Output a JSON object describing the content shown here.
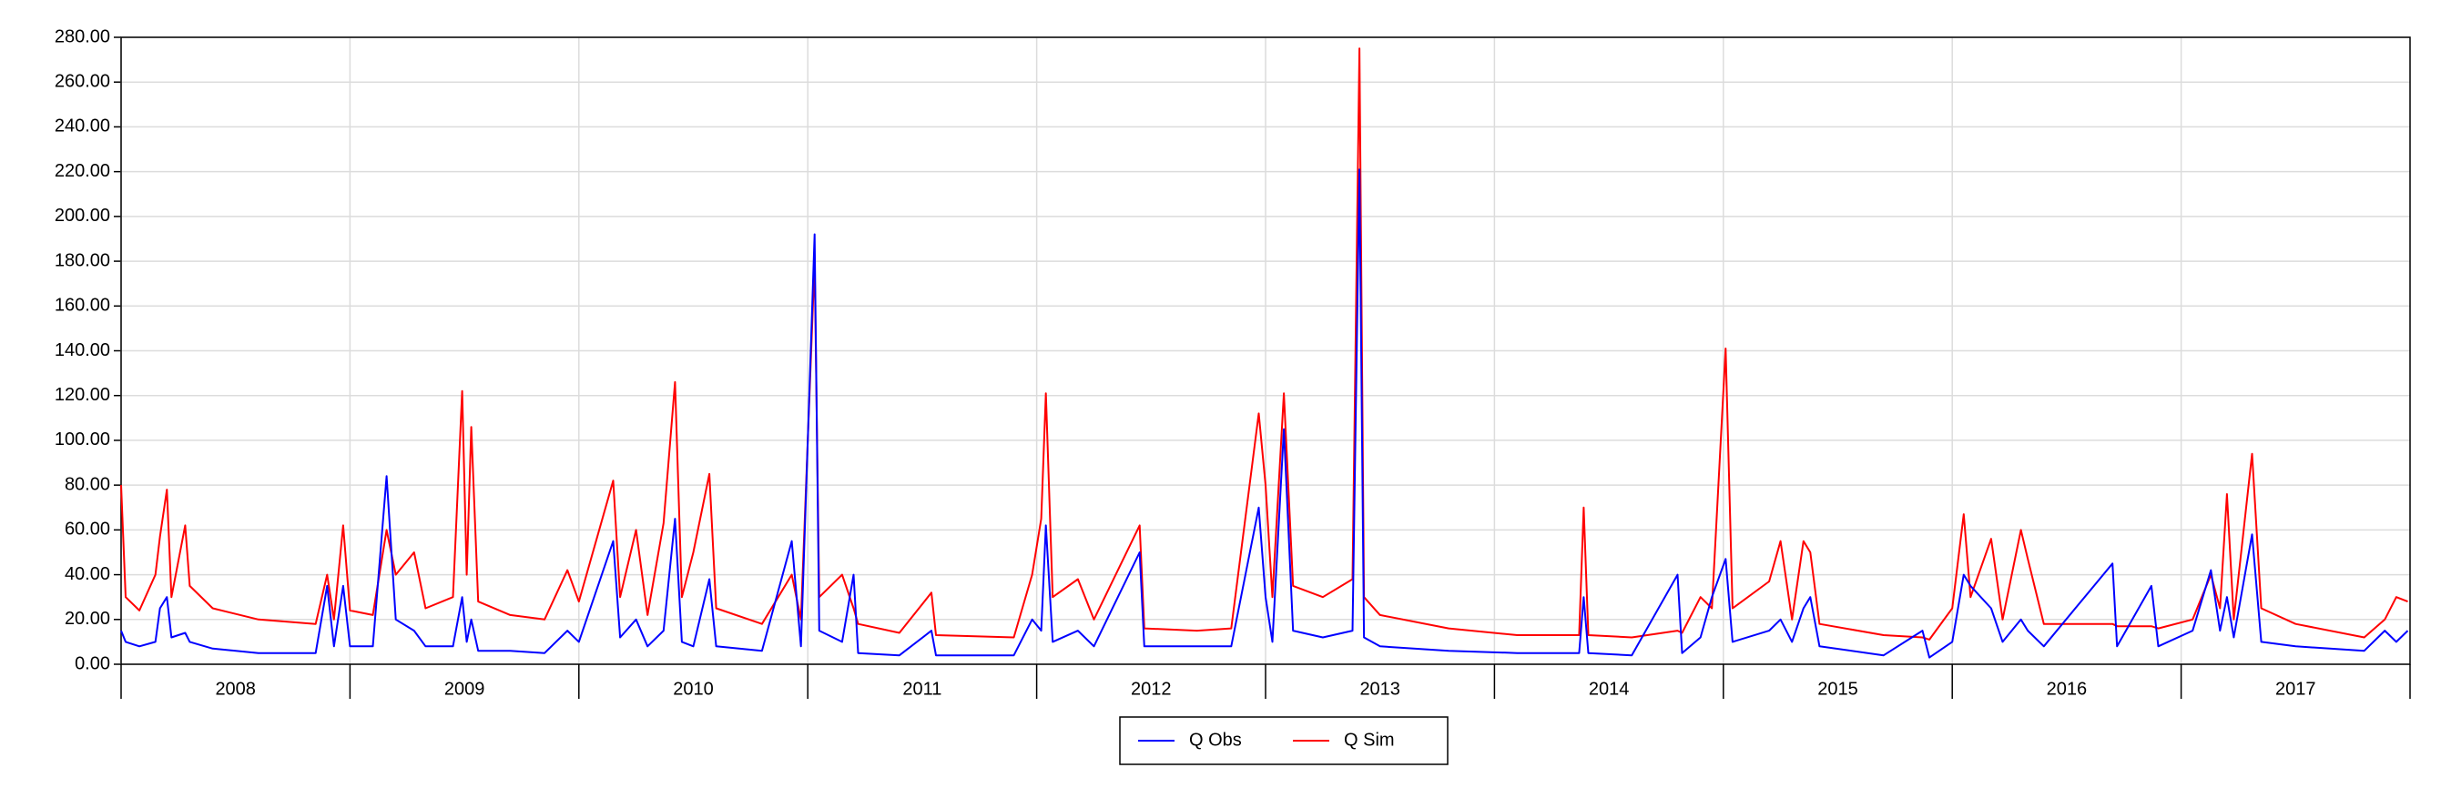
{
  "chart_data": {
    "type": "line",
    "x": [
      2008.0,
      2008.02,
      2008.08,
      2008.15,
      2008.17,
      2008.2,
      2008.22,
      2008.28,
      2008.3,
      2008.4,
      2008.6,
      2008.85,
      2008.9,
      2008.93,
      2008.97,
      2009.0,
      2009.1,
      2009.16,
      2009.2,
      2009.28,
      2009.33,
      2009.45,
      2009.49,
      2009.51,
      2009.53,
      2009.56,
      2009.7,
      2009.85,
      2009.95,
      2010.0,
      2010.15,
      2010.18,
      2010.25,
      2010.3,
      2010.37,
      2010.42,
      2010.45,
      2010.5,
      2010.57,
      2010.6,
      2010.8,
      2010.93,
      2010.97,
      2011.03,
      2011.05,
      2011.15,
      2011.2,
      2011.22,
      2011.4,
      2011.54,
      2011.56,
      2011.9,
      2011.98,
      2012.02,
      2012.04,
      2012.07,
      2012.18,
      2012.25,
      2012.45,
      2012.47,
      2012.7,
      2012.85,
      2012.97,
      2013.0,
      2013.03,
      2013.08,
      2013.12,
      2013.25,
      2013.38,
      2013.41,
      2013.43,
      2013.5,
      2013.8,
      2014.1,
      2014.37,
      2014.39,
      2014.41,
      2014.6,
      2014.8,
      2014.82,
      2014.9,
      2014.95,
      2015.01,
      2015.04,
      2015.2,
      2015.25,
      2015.3,
      2015.35,
      2015.38,
      2015.42,
      2015.7,
      2015.87,
      2015.9,
      2016.0,
      2016.05,
      2016.08,
      2016.17,
      2016.22,
      2016.3,
      2016.33,
      2016.4,
      2016.7,
      2016.72,
      2016.87,
      2016.9,
      2017.05,
      2017.13,
      2017.17,
      2017.2,
      2017.23,
      2017.31,
      2017.35,
      2017.5,
      2017.8,
      2017.89,
      2017.94,
      2017.99
    ],
    "series": [
      {
        "name": "Q Sim",
        "color": "#ff0000",
        "values": [
          80,
          30,
          24,
          40,
          57,
          78,
          30,
          62,
          35,
          25,
          20,
          18,
          40,
          20,
          62,
          24,
          22,
          60,
          40,
          50,
          25,
          30,
          122,
          40,
          106,
          28,
          22,
          20,
          42,
          28,
          82,
          30,
          60,
          22,
          63,
          126,
          30,
          50,
          85,
          25,
          18,
          40,
          20,
          180,
          30,
          40,
          25,
          18,
          14,
          32,
          13,
          12,
          40,
          65,
          121,
          30,
          38,
          20,
          62,
          16,
          15,
          16,
          112,
          80,
          30,
          121,
          35,
          30,
          38,
          275,
          30,
          22,
          16,
          13,
          13,
          70,
          13,
          12,
          15,
          14,
          30,
          25,
          141,
          25,
          37,
          55,
          20,
          55,
          50,
          18,
          13,
          12,
          11,
          25,
          67,
          30,
          56,
          20,
          60,
          47,
          18,
          18,
          17,
          17,
          16,
          20,
          40,
          25,
          76,
          20,
          94,
          25,
          18,
          12,
          20,
          30,
          28
        ]
      },
      {
        "name": "Q Obs",
        "color": "#0000ff",
        "values": [
          15,
          10,
          8,
          10,
          25,
          30,
          12,
          14,
          10,
          7,
          5,
          5,
          35,
          8,
          35,
          8,
          8,
          84,
          20,
          15,
          8,
          8,
          30,
          10,
          20,
          6,
          6,
          5,
          15,
          10,
          55,
          12,
          20,
          8,
          15,
          65,
          10,
          8,
          38,
          8,
          6,
          55,
          8,
          192,
          15,
          10,
          40,
          5,
          4,
          15,
          4,
          4,
          20,
          15,
          62,
          10,
          15,
          8,
          50,
          8,
          8,
          8,
          70,
          30,
          10,
          105,
          15,
          12,
          15,
          221,
          12,
          8,
          6,
          5,
          5,
          30,
          5,
          4,
          40,
          5,
          12,
          30,
          47,
          10,
          15,
          20,
          10,
          25,
          30,
          8,
          4,
          15,
          3,
          10,
          40,
          35,
          25,
          10,
          20,
          15,
          8,
          45,
          8,
          35,
          8,
          15,
          42,
          15,
          30,
          12,
          58,
          10,
          8,
          6,
          15,
          10,
          15
        ]
      }
    ],
    "xlim": [
      2008,
      2018
    ],
    "xticks": [
      2008,
      2009,
      2010,
      2011,
      2012,
      2013,
      2014,
      2015,
      2016,
      2017
    ],
    "ylim": [
      0,
      280
    ],
    "yticks": [
      {
        "value": 0,
        "label": "0.00"
      },
      {
        "value": 20,
        "label": "20.00"
      },
      {
        "value": 40,
        "label": "40.00"
      },
      {
        "value": 60,
        "label": "60.00"
      },
      {
        "value": 80,
        "label": "80.00"
      },
      {
        "value": 100,
        "label": "100.00"
      },
      {
        "value": 120,
        "label": "120.00"
      },
      {
        "value": 140,
        "label": "140.00"
      },
      {
        "value": 160,
        "label": "160.00"
      },
      {
        "value": 180,
        "label": "180.00"
      },
      {
        "value": 200,
        "label": "200.00"
      },
      {
        "value": 220,
        "label": "220.00"
      },
      {
        "value": 240,
        "label": "240.00"
      },
      {
        "value": 260,
        "label": "260.00"
      },
      {
        "value": 280,
        "label": "280.00"
      }
    ],
    "grid": true,
    "legend": "bottom"
  }
}
